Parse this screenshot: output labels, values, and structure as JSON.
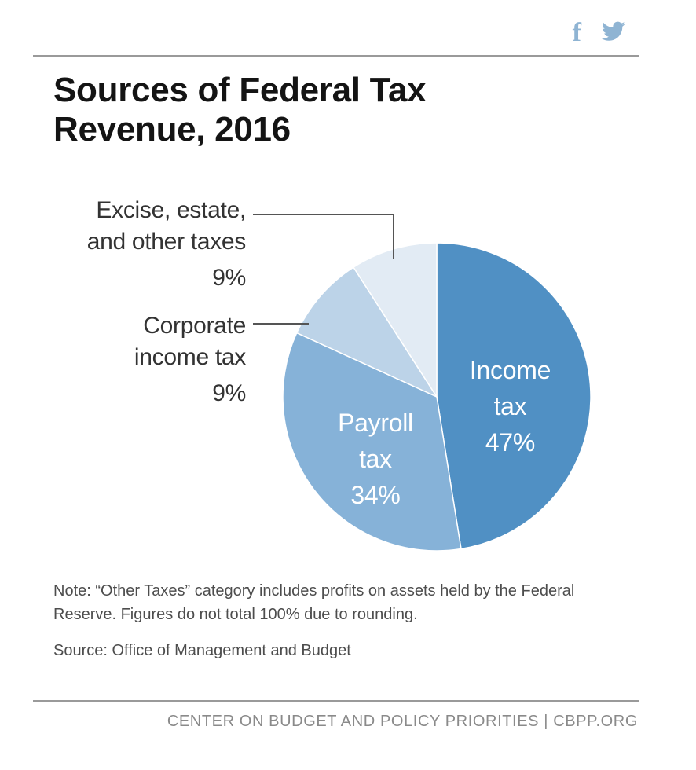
{
  "header": {
    "social": [
      {
        "label": "f",
        "icon": "facebook-icon"
      },
      {
        "label": "twitter",
        "icon": "twitter-icon"
      }
    ]
  },
  "chart_data": {
    "type": "pie",
    "title": "Sources of Federal Tax Revenue, 2016",
    "slices": [
      {
        "name": "Income tax",
        "label_lines": [
          "Income",
          "tax"
        ],
        "value": 47,
        "value_label": "47%",
        "color": "#5090c4"
      },
      {
        "name": "Payroll tax",
        "label_lines": [
          "Payroll",
          "tax"
        ],
        "value": 34,
        "value_label": "34%",
        "color": "#86b2d8"
      },
      {
        "name": "Corporate income tax",
        "label_lines": [
          "Corporate",
          "income tax"
        ],
        "value": 9,
        "value_label": "9%",
        "color": "#bcd3e8"
      },
      {
        "name": "Excise, estate, and other taxes",
        "label_lines": [
          "Excise, estate,",
          "and other taxes"
        ],
        "value": 9,
        "value_label": "9%",
        "color": "#e2ebf4"
      }
    ]
  },
  "notes": {
    "note": "Note: “Other Taxes” category includes profits on assets held by the Federal Reserve. Figures do not total 100% due to rounding.",
    "source": "Source: Office of Management and Budget"
  },
  "footer": {
    "credit": "CENTER ON BUDGET AND POLICY PRIORITIES | CBPP.ORG"
  },
  "colors": {
    "rule": "#9a9a9a",
    "social": "#8fb4d3",
    "leader": "#555555"
  }
}
